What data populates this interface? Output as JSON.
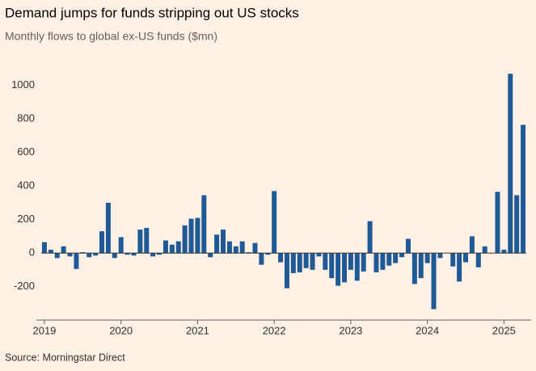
{
  "chart_data": {
    "type": "bar",
    "title": "Demand jumps for funds stripping out US stocks",
    "subtitle": "Monthly flows to global ex-US funds ($mn)",
    "source": "Source: Morningstar Direct",
    "categories": [
      "2019",
      null,
      null,
      null,
      null,
      null,
      null,
      null,
      null,
      null,
      null,
      null,
      "2020",
      null,
      null,
      null,
      null,
      null,
      null,
      null,
      null,
      null,
      null,
      null,
      "2021",
      null,
      null,
      null,
      null,
      null,
      null,
      null,
      null,
      null,
      null,
      null,
      "2022",
      null,
      null,
      null,
      null,
      null,
      null,
      null,
      null,
      null,
      null,
      null,
      "2023",
      null,
      null,
      null,
      null,
      null,
      null,
      null,
      null,
      null,
      null,
      null,
      "2024",
      null,
      null,
      null,
      null,
      null,
      null,
      null,
      null,
      null,
      null,
      null,
      "2025",
      null,
      null,
      null
    ],
    "values": [
      65,
      20,
      -30,
      40,
      -20,
      -95,
      5,
      -25,
      -15,
      130,
      300,
      -30,
      95,
      -10,
      -15,
      140,
      150,
      -20,
      -10,
      75,
      50,
      70,
      165,
      205,
      210,
      345,
      -25,
      110,
      140,
      70,
      40,
      70,
      5,
      60,
      -70,
      -10,
      370,
      -55,
      -210,
      -120,
      -115,
      -90,
      -100,
      -20,
      -100,
      -150,
      -195,
      -175,
      -100,
      -165,
      -110,
      190,
      -115,
      -100,
      -75,
      -60,
      -25,
      85,
      -185,
      -150,
      -60,
      -335,
      -30,
      0,
      -80,
      -170,
      -55,
      100,
      -85,
      40,
      0,
      365,
      20,
      1070,
      345,
      765
    ],
    "color": "#1f5a96",
    "ylim": [
      -400,
      1100
    ],
    "yticks": [
      -200,
      0,
      200,
      400,
      600,
      800,
      1000
    ],
    "grid": false
  }
}
